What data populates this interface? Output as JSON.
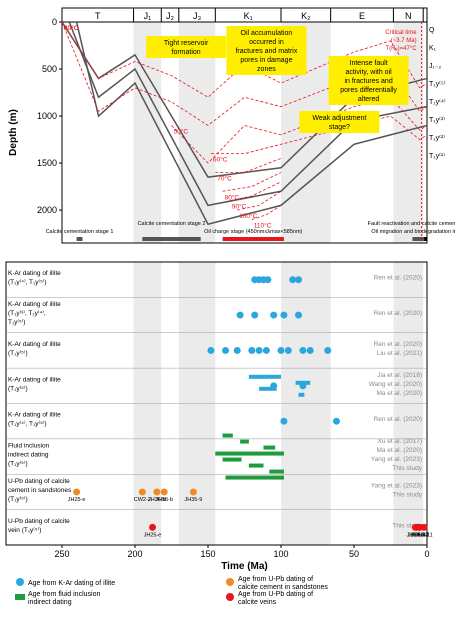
{
  "chart_data": {
    "type": "scatter",
    "x_axis": {
      "label": "Time (Ma)",
      "range": [
        250,
        0
      ],
      "ticks": [
        250,
        200,
        150,
        100,
        50,
        0
      ]
    },
    "periods": [
      {
        "name": "T",
        "start": 250,
        "end": 201
      },
      {
        "name": "J₁",
        "start": 201,
        "end": 182
      },
      {
        "name": "J₂",
        "start": 182,
        "end": 170
      },
      {
        "name": "J₃",
        "start": 170,
        "end": 145
      },
      {
        "name": "K₁",
        "start": 145,
        "end": 100
      },
      {
        "name": "K₂",
        "start": 100,
        "end": 66
      },
      {
        "name": "E",
        "start": 66,
        "end": 23
      },
      {
        "name": "N",
        "start": 23,
        "end": 2.6
      }
    ],
    "burial": {
      "ylabel": "Depth (m)",
      "ylim": [
        0,
        2350
      ],
      "yticks": [
        0,
        500,
        1000,
        1500,
        2000
      ],
      "isotherms": [
        {
          "label": "30°C",
          "points": [
            [
              250,
              0
            ],
            [
              225,
              600
            ],
            [
              200,
              420
            ],
            [
              175,
              570
            ],
            [
              150,
              800
            ],
            [
              125,
              450
            ],
            [
              100,
              650
            ],
            [
              50,
              320
            ],
            [
              25,
              200
            ],
            [
              5,
              700
            ],
            [
              0,
              650
            ]
          ]
        },
        {
          "label": "40°C",
          "points": [
            [
              250,
              0
            ],
            [
              225,
              950
            ],
            [
              200,
              700
            ],
            [
              175,
              850
            ],
            [
              150,
              1100
            ],
            [
              125,
              800
            ],
            [
              100,
              900
            ],
            [
              50,
              600
            ],
            [
              25,
              500
            ],
            [
              5,
              950
            ],
            [
              0,
              900
            ]
          ]
        },
        {
          "label": "50°C",
          "points": [
            [
              175,
              1100
            ],
            [
              150,
              1500
            ],
            [
              125,
              1100
            ],
            [
              100,
              1200
            ],
            [
              50,
              900
            ],
            [
              25,
              800
            ],
            [
              5,
              1150
            ],
            [
              0,
              1100
            ]
          ]
        },
        {
          "label": "60°C",
          "points": [
            [
              148,
              1400
            ],
            [
              125,
              1400
            ],
            [
              100,
              1300
            ],
            [
              50,
              1100
            ],
            [
              25,
              1000
            ],
            [
              5,
              1250
            ],
            [
              0,
              1200
            ]
          ]
        },
        {
          "label": "70°C",
          "points": [
            [
              145,
              1600
            ],
            [
              125,
              1600
            ],
            [
              100,
              1450
            ]
          ]
        },
        {
          "label": "80°C",
          "points": [
            [
              140,
              1800
            ],
            [
              120,
              1750
            ],
            [
              100,
              1600
            ]
          ]
        },
        {
          "label": "90°C",
          "points": [
            [
              135,
              1900
            ],
            [
              120,
              1850
            ],
            [
              100,
              1700
            ]
          ]
        },
        {
          "label": "100°C",
          "points": [
            [
              130,
              2000
            ],
            [
              115,
              1950
            ],
            [
              100,
              1800
            ]
          ]
        },
        {
          "label": "110°C",
          "points": [
            [
              120,
              2100
            ],
            [
              110,
              2050
            ],
            [
              100,
              1950
            ]
          ]
        }
      ],
      "strata": [
        "Q",
        "K₁",
        "J₁₋₂",
        "T₁y⁽⁵⁾",
        "T₁y⁽⁴⁾",
        "T₁y⁽³⁾",
        "T₁y⁽²⁾",
        "T₁y⁽¹⁾"
      ],
      "critical_time_label": [
        "Critical time",
        "(~3.7 Ma)",
        "T(Rₒ)=47°C"
      ],
      "callouts": [
        "Tight reservoir formation",
        "Oil accumulation occurred in fractures and matrix pores in damage zones",
        "Intense fault activity, with oil in fractures and pores differentially altered",
        "Weak adjustment stage?"
      ],
      "stage_bars": [
        {
          "label": "Calcite cementation stage 1",
          "from": 240,
          "to": 236,
          "color": "#555555"
        },
        {
          "label": "Calcite cementation stage 2",
          "from": 195,
          "to": 155,
          "color": "#555555"
        },
        {
          "label": "Oil charge stage (450nm≤λmax<585nm)",
          "from": 140,
          "to": 98,
          "color": "#e8151b"
        },
        {
          "label": "Fault reactivation and calcite cementation",
          "from": 10,
          "to": 2,
          "color": "#555555"
        },
        {
          "label": "Oil migration and biodegradation in fractures",
          "from": 2,
          "to": 0,
          "color": "#000000"
        }
      ]
    },
    "dating": {
      "rows": [
        {
          "label": "K-Ar dating of illite (T₁y⁽⁴⁾, T₁y⁽⁵⁾)",
          "ref": "Ren et al. (2020)",
          "kar": [
            118,
            115,
            112,
            109,
            92,
            88
          ]
        },
        {
          "label": "K-Ar dating of illite (T₁y⁽³⁾, T₁y⁽⁴⁾, T₁y⁽⁵⁾)",
          "ref": "Ren et al. (2020)",
          "kar": [
            128,
            118,
            105,
            98,
            88
          ]
        },
        {
          "label": "K-Ar dating of illite (T₁y⁽⁵⁾)",
          "ref": [
            "Ren et al. (2020)",
            "Liu et al. (2021)"
          ],
          "kar": [
            138,
            120,
            110,
            100,
            85,
            68,
            148,
            130,
            115,
            95,
            80
          ]
        },
        {
          "label": "K-Ar dating of illite (T₁y⁽⁵⁾)",
          "ref": [
            "Jia et al. (2018)",
            "Wang et al. (2020)",
            "Ma et al. (2020)"
          ],
          "kar": [
            105,
            85
          ],
          "bars": [
            [
              122,
              100
            ],
            [
              90,
              80
            ],
            [
              115,
              103
            ],
            [
              88,
              84
            ]
          ]
        },
        {
          "label": "K-Ar dating of illite (T₁y⁽⁴⁾, T₁y⁽⁵⁾)",
          "ref": "Ren et al. (2020)",
          "kar": [
            98,
            62
          ]
        },
        {
          "label": "Fluid inclusion indirect dating (T₁y⁽⁵⁾)",
          "ref": [
            "Xu et al. (2017)",
            "Ma et al. (2020)",
            "Yang et al. (2023)",
            "This study"
          ],
          "fi": [
            [
              140,
              133
            ],
            [
              128,
              122
            ],
            [
              112,
              104
            ],
            [
              145,
              98
            ],
            [
              140,
              127
            ],
            [
              122,
              112
            ],
            [
              108,
              98
            ],
            [
              138,
              98
            ]
          ]
        },
        {
          "label": "U-Pb dating of calcite cement in sandstones (T₁y⁽⁵⁾)",
          "ref": [
            "Yang et al. (2023)",
            "This study"
          ],
          "upb": [
            [
              185,
              "JH36-b"
            ],
            [
              160,
              "JH35-9"
            ],
            [
              240,
              "JH25-e"
            ],
            [
              195,
              "CW2-2"
            ],
            [
              180,
              "JH55-b"
            ]
          ]
        },
        {
          "label": "U-Pb dating of calcite vein (T₁y⁽⁵⁾)",
          "ref": "This study",
          "vein": [
            [
              188,
              "JH25-e"
            ],
            [
              7,
              "JH25-8"
            ],
            [
              5,
              "JH9-13"
            ],
            [
              8,
              "JH9-14"
            ],
            [
              5,
              "JH63-2"
            ],
            [
              2,
              "JH9-11"
            ]
          ]
        }
      ],
      "legend": [
        {
          "key": "kar",
          "label": "Age from K-Ar dating of illite",
          "color": "#2aa7de"
        },
        {
          "key": "fi",
          "label": "Age from fluid inclusion indirect dating",
          "color": "#1f9a3c"
        },
        {
          "key": "upb",
          "label": "Age from U-Pb dating of calcite cement in sandstones",
          "color": "#f08a24"
        },
        {
          "key": "vein",
          "label": "Age from U-Pb dating of calcite veins",
          "color": "#e8151b"
        }
      ]
    }
  }
}
